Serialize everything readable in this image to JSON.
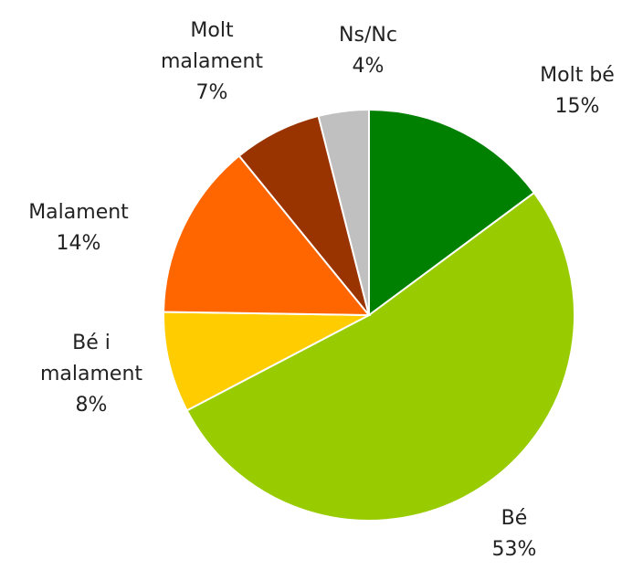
{
  "chart_data": {
    "type": "pie",
    "categories": [
      "Molt bé",
      "Bé",
      "Bé i malament",
      "Malament",
      "Molt malament",
      "Ns/Nc"
    ],
    "values": [
      15,
      53,
      8,
      14,
      7,
      4
    ],
    "value_labels": [
      "15%",
      "53%",
      "8%",
      "14%",
      "7%",
      "4%"
    ],
    "colors": [
      "#008000",
      "#99cc00",
      "#ffcc00",
      "#ff6600",
      "#993300",
      "#c0c0c0"
    ]
  }
}
